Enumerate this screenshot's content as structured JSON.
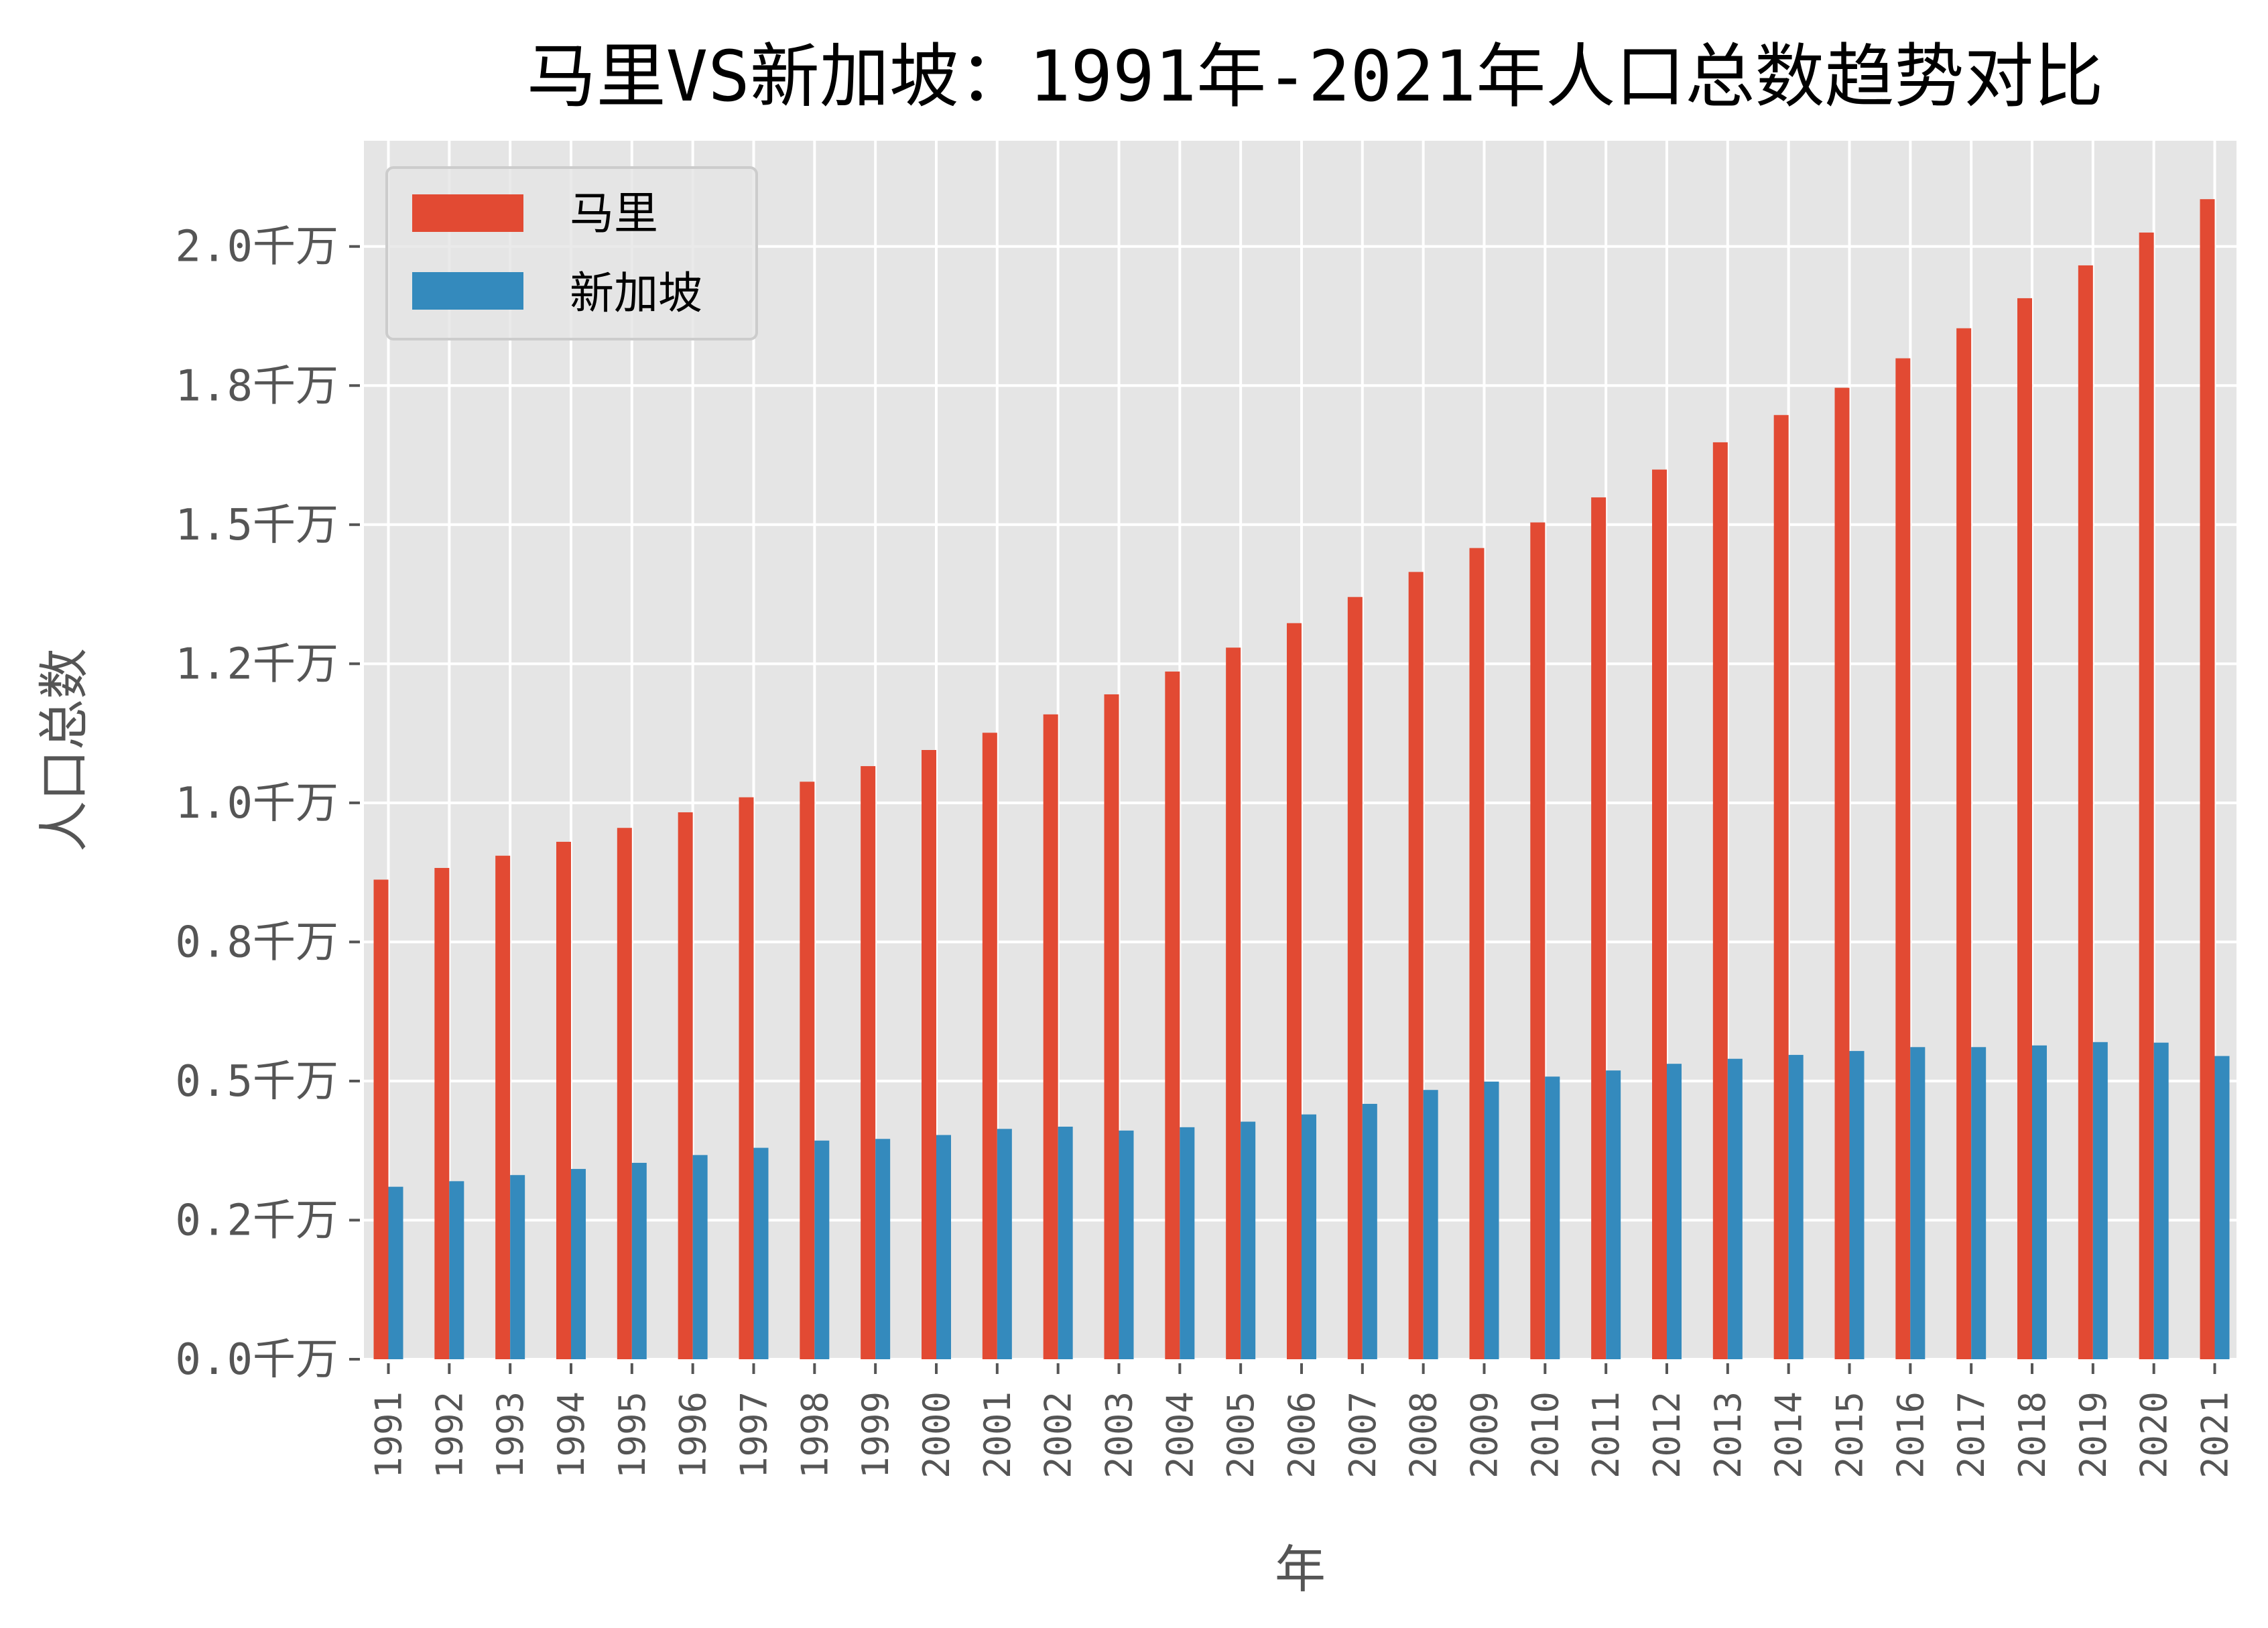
{
  "chart_data": {
    "type": "bar",
    "title": "马里VS新加坡：1991年-2021年人口总数趋势对比",
    "xlabel": "年",
    "ylabel": "人口总数",
    "ylim": [
      0,
      2.19
    ],
    "y_ticks": [
      {
        "value": 0.0,
        "label": "0.0千万"
      },
      {
        "value": 0.25,
        "label": "0.2千万"
      },
      {
        "value": 0.5,
        "label": "0.5千万"
      },
      {
        "value": 0.75,
        "label": "0.8千万"
      },
      {
        "value": 1.0,
        "label": "1.0千万"
      },
      {
        "value": 1.25,
        "label": "1.2千万"
      },
      {
        "value": 1.5,
        "label": "1.5千万"
      },
      {
        "value": 1.75,
        "label": "1.8千万"
      },
      {
        "value": 2.0,
        "label": "2.0千万"
      }
    ],
    "categories": [
      "1991",
      "1992",
      "1993",
      "1994",
      "1995",
      "1996",
      "1997",
      "1998",
      "1999",
      "2000",
      "2001",
      "2002",
      "2003",
      "2004",
      "2005",
      "2006",
      "2007",
      "2008",
      "2009",
      "2010",
      "2011",
      "2012",
      "2013",
      "2014",
      "2015",
      "2016",
      "2017",
      "2018",
      "2019",
      "2020",
      "2021"
    ],
    "series": [
      {
        "name": "马里",
        "color": "#E24A33",
        "values": [
          0.862,
          0.883,
          0.905,
          0.93,
          0.955,
          0.983,
          1.01,
          1.038,
          1.066,
          1.095,
          1.126,
          1.159,
          1.195,
          1.236,
          1.279,
          1.323,
          1.37,
          1.415,
          1.458,
          1.504,
          1.549,
          1.599,
          1.648,
          1.697,
          1.746,
          1.799,
          1.853,
          1.907,
          1.966,
          2.025,
          2.085
        ]
      },
      {
        "name": "新加坡",
        "color": "#348ABD",
        "values": [
          0.31,
          0.32,
          0.331,
          0.342,
          0.353,
          0.367,
          0.38,
          0.393,
          0.396,
          0.403,
          0.414,
          0.418,
          0.411,
          0.417,
          0.427,
          0.44,
          0.459,
          0.484,
          0.499,
          0.508,
          0.519,
          0.531,
          0.54,
          0.547,
          0.554,
          0.561,
          0.561,
          0.564,
          0.57,
          0.569,
          0.545
        ]
      }
    ],
    "legend": {
      "position": "top-left"
    },
    "grid": true
  }
}
